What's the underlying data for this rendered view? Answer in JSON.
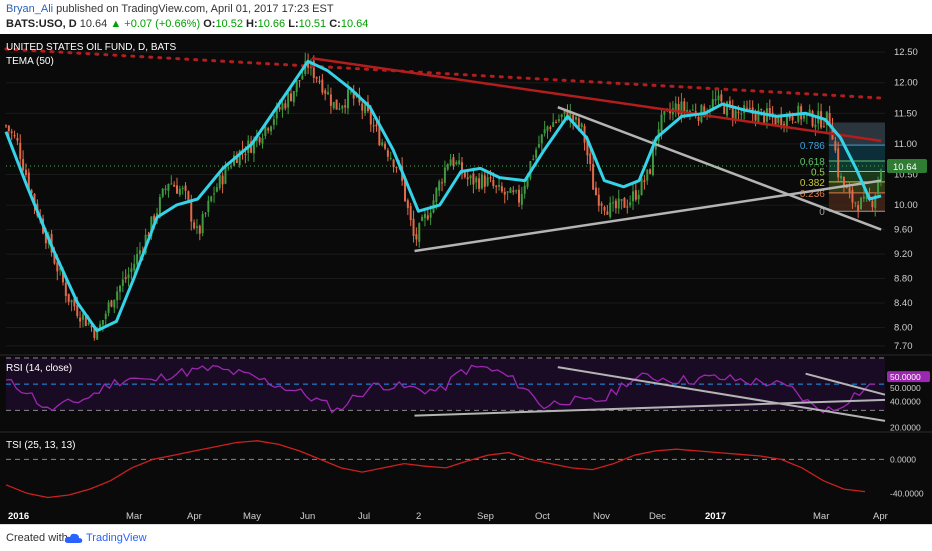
{
  "header": {
    "author": "Bryan_Ali",
    "published_text": "published on TradingView.com, April 01, 2017 17:23 EST",
    "symbol": "BATS:USO, D",
    "last": "10.64",
    "change": "+0.07 (+0.66%)",
    "open_label": "O:",
    "open": "10.52",
    "high_label": "H:",
    "high": "10.66",
    "low_label": "L:",
    "low": "10.51",
    "close_label": "C:",
    "close": "10.64"
  },
  "footer": {
    "created_with": "Created with",
    "brand": "TradingView"
  },
  "colors": {
    "background": "#0a0a0a",
    "up_candle": "#3f9a3f",
    "down_candle": "#e26a4a",
    "tema": "#34d3e8",
    "red_trend": "#b31d1d",
    "grey_trend": "#b4b4b4",
    "rsi": "#9c27b0",
    "tsi": "#cc2020",
    "last_price_tag": "#2e7d32"
  },
  "chart_data": [
    {
      "type": "candlestick",
      "title": "UNITED STATES OIL FUND, D, BATS",
      "indicator": "TEMA (50)",
      "x_ticks": [
        "2016",
        "Mar",
        "Apr",
        "May",
        "Jun",
        "Jul",
        "2",
        "Sep",
        "Oct",
        "Nov",
        "Dec",
        "2017",
        "Mar",
        "Apr"
      ],
      "y_ticks": [
        "12.50",
        "12.00",
        "11.50",
        "11.00",
        "10.50",
        "10.00",
        "9.60",
        "9.20",
        "8.80",
        "8.40",
        "8.00",
        "7.70"
      ],
      "ylim": [
        7.6,
        12.6
      ],
      "last_price": "10.64",
      "close_path": [
        {
          "x": "2016-01-04",
          "y": 11.3
        },
        {
          "x": "2016-01-10",
          "y": 11.0
        },
        {
          "x": "2016-01-18",
          "y": 10.1
        },
        {
          "x": "2016-01-28",
          "y": 9.2
        },
        {
          "x": "2016-02-05",
          "y": 8.5
        },
        {
          "x": "2016-02-12",
          "y": 8.2
        },
        {
          "x": "2016-02-20",
          "y": 7.9
        },
        {
          "x": "2016-02-28",
          "y": 8.5
        },
        {
          "x": "2016-03-08",
          "y": 8.9
        },
        {
          "x": "2016-03-18",
          "y": 9.6
        },
        {
          "x": "2016-03-28",
          "y": 10.4
        },
        {
          "x": "2016-04-05",
          "y": 10.2
        },
        {
          "x": "2016-04-12",
          "y": 9.5
        },
        {
          "x": "2016-04-20",
          "y": 10.2
        },
        {
          "x": "2016-05-01",
          "y": 10.8
        },
        {
          "x": "2016-05-10",
          "y": 11.0
        },
        {
          "x": "2016-05-20",
          "y": 11.4
        },
        {
          "x": "2016-05-30",
          "y": 11.8
        },
        {
          "x": "2016-06-08",
          "y": 12.3
        },
        {
          "x": "2016-06-15",
          "y": 12.0
        },
        {
          "x": "2016-06-22",
          "y": 11.6
        },
        {
          "x": "2016-06-30",
          "y": 11.8
        },
        {
          "x": "2016-07-08",
          "y": 11.5
        },
        {
          "x": "2016-07-15",
          "y": 11.1
        },
        {
          "x": "2016-07-25",
          "y": 10.6
        },
        {
          "x": "2016-08-02",
          "y": 9.4
        },
        {
          "x": "2016-08-12",
          "y": 10.1
        },
        {
          "x": "2016-08-20",
          "y": 10.8
        },
        {
          "x": "2016-08-30",
          "y": 10.4
        },
        {
          "x": "2016-09-08",
          "y": 10.4
        },
        {
          "x": "2016-09-15",
          "y": 10.2
        },
        {
          "x": "2016-09-25",
          "y": 10.1
        },
        {
          "x": "2016-10-02",
          "y": 10.8
        },
        {
          "x": "2016-10-10",
          "y": 11.3
        },
        {
          "x": "2016-10-20",
          "y": 11.5
        },
        {
          "x": "2016-10-28",
          "y": 11.2
        },
        {
          "x": "2016-11-03",
          "y": 10.2
        },
        {
          "x": "2016-11-12",
          "y": 9.9
        },
        {
          "x": "2016-11-22",
          "y": 10.1
        },
        {
          "x": "2016-12-01",
          "y": 10.5
        },
        {
          "x": "2016-12-06",
          "y": 11.3
        },
        {
          "x": "2016-12-15",
          "y": 11.6
        },
        {
          "x": "2016-12-28",
          "y": 11.5
        },
        {
          "x": "2017-01-04",
          "y": 11.7
        },
        {
          "x": "2017-01-15",
          "y": 11.5
        },
        {
          "x": "2017-01-25",
          "y": 11.5
        },
        {
          "x": "2017-02-05",
          "y": 11.4
        },
        {
          "x": "2017-02-15",
          "y": 11.5
        },
        {
          "x": "2017-02-25",
          "y": 11.4
        },
        {
          "x": "2017-03-05",
          "y": 11.4
        },
        {
          "x": "2017-03-09",
          "y": 10.5
        },
        {
          "x": "2017-03-15",
          "y": 10.1
        },
        {
          "x": "2017-03-22",
          "y": 10.0
        },
        {
          "x": "2017-03-27",
          "y": 10.1
        },
        {
          "x": "2017-03-31",
          "y": 10.64
        }
      ],
      "tema_path": [
        {
          "x": "2016-01-04",
          "y": 11.2
        },
        {
          "x": "2016-01-15",
          "y": 10.3
        },
        {
          "x": "2016-01-28",
          "y": 9.3
        },
        {
          "x": "2016-02-10",
          "y": 8.4
        },
        {
          "x": "2016-02-20",
          "y": 7.95
        },
        {
          "x": "2016-03-01",
          "y": 8.1
        },
        {
          "x": "2016-03-10",
          "y": 8.8
        },
        {
          "x": "2016-03-22",
          "y": 9.8
        },
        {
          "x": "2016-04-01",
          "y": 10.0
        },
        {
          "x": "2016-04-12",
          "y": 10.1
        },
        {
          "x": "2016-04-25",
          "y": 10.6
        },
        {
          "x": "2016-05-10",
          "y": 11.0
        },
        {
          "x": "2016-05-25",
          "y": 11.7
        },
        {
          "x": "2016-06-08",
          "y": 12.35
        },
        {
          "x": "2016-06-18",
          "y": 12.2
        },
        {
          "x": "2016-06-30",
          "y": 11.9
        },
        {
          "x": "2016-07-10",
          "y": 11.6
        },
        {
          "x": "2016-07-22",
          "y": 10.9
        },
        {
          "x": "2016-08-04",
          "y": 9.9
        },
        {
          "x": "2016-08-15",
          "y": 10.0
        },
        {
          "x": "2016-08-26",
          "y": 10.55
        },
        {
          "x": "2016-09-05",
          "y": 10.6
        },
        {
          "x": "2016-09-15",
          "y": 10.45
        },
        {
          "x": "2016-09-28",
          "y": 10.4
        },
        {
          "x": "2016-10-08",
          "y": 10.9
        },
        {
          "x": "2016-10-20",
          "y": 11.45
        },
        {
          "x": "2016-10-30",
          "y": 11.1
        },
        {
          "x": "2016-11-08",
          "y": 10.4
        },
        {
          "x": "2016-11-18",
          "y": 10.3
        },
        {
          "x": "2016-11-26",
          "y": 10.4
        },
        {
          "x": "2016-12-05",
          "y": 11.1
        },
        {
          "x": "2016-12-18",
          "y": 11.45
        },
        {
          "x": "2016-12-30",
          "y": 11.5
        },
        {
          "x": "2017-01-08",
          "y": 11.65
        },
        {
          "x": "2017-01-20",
          "y": 11.55
        },
        {
          "x": "2017-02-05",
          "y": 11.45
        },
        {
          "x": "2017-02-20",
          "y": 11.5
        },
        {
          "x": "2017-03-02",
          "y": 11.4
        },
        {
          "x": "2017-03-10",
          "y": 11.1
        },
        {
          "x": "2017-03-18",
          "y": 10.6
        },
        {
          "x": "2017-03-25",
          "y": 10.1
        },
        {
          "x": "2017-03-31",
          "y": 10.15
        }
      ],
      "trendlines": [
        {
          "color": "red",
          "style": "dotted",
          "from": {
            "x": "2016-01-04",
            "y": 12.55
          },
          "to": {
            "x": "2017-03-31",
            "y": 11.75
          }
        },
        {
          "color": "red",
          "style": "solid",
          "from": {
            "x": "2016-06-10",
            "y": 12.4
          },
          "to": {
            "x": "2017-03-31",
            "y": 11.05
          }
        },
        {
          "color": "grey",
          "style": "solid",
          "from": {
            "x": "2016-08-02",
            "y": 9.25
          },
          "to": {
            "x": "2017-03-31",
            "y": 10.4
          }
        },
        {
          "color": "grey",
          "style": "solid",
          "from": {
            "x": "2016-10-15",
            "y": 11.6
          },
          "to": {
            "x": "2017-03-31",
            "y": 9.6
          }
        }
      ],
      "fib_levels": [
        {
          "label": "0.786",
          "price": 10.98
        },
        {
          "label": "0.618",
          "price": 10.72
        },
        {
          "label": "0.5",
          "price": 10.55
        },
        {
          "label": "0.382",
          "price": 10.38
        },
        {
          "label": "0.236",
          "price": 10.2
        },
        {
          "label": "0",
          "price": 9.9
        }
      ]
    },
    {
      "type": "line",
      "title": "RSI (14, close)",
      "y_ticks": [
        "50.0000",
        "40.0000",
        "20.0000"
      ],
      "ylim": [
        15,
        70
      ],
      "last_value": "50.0000",
      "values": [
        52,
        45,
        30,
        35,
        40,
        50,
        55,
        52,
        58,
        60,
        62,
        59,
        55,
        50,
        45,
        38,
        30,
        42,
        50,
        48,
        46,
        45,
        60,
        63,
        58,
        48,
        33,
        38,
        36,
        39,
        52,
        56,
        54,
        53,
        55,
        54,
        52,
        51,
        46,
        33,
        30,
        42,
        50
      ]
    },
    {
      "type": "line",
      "title": "TSI (25, 13, 13)",
      "y_ticks": [
        "0.0000",
        "-40.0000"
      ],
      "ylim": [
        -55,
        30
      ],
      "values": [
        -30,
        -40,
        -45,
        -42,
        -35,
        -25,
        -10,
        0,
        5,
        10,
        15,
        20,
        22,
        18,
        10,
        0,
        -10,
        -15,
        -10,
        -5,
        -8,
        -10,
        -2,
        5,
        8,
        0,
        -5,
        -10,
        -12,
        -5,
        5,
        10,
        12,
        10,
        8,
        6,
        4,
        0,
        -10,
        -25,
        -35,
        -38
      ]
    }
  ]
}
